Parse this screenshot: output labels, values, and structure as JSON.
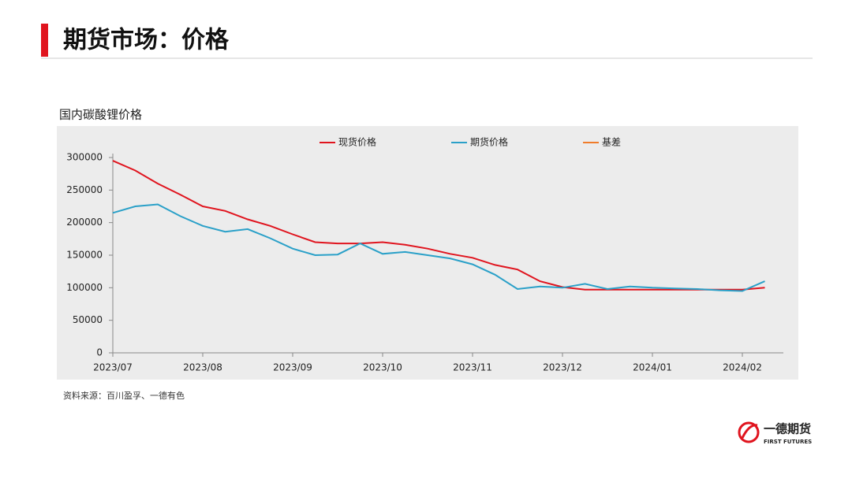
{
  "header": {
    "title": "期货市场：价格"
  },
  "chart_data": {
    "type": "line",
    "title": "国内碳酸锂价格",
    "categories": [
      "2023/07",
      null,
      null,
      null,
      "2023/08",
      null,
      null,
      null,
      "2023/09",
      null,
      null,
      null,
      "2023/10",
      null,
      null,
      null,
      "2023/11",
      null,
      null,
      null,
      "2023/12",
      null,
      null,
      null,
      "2024/01",
      null,
      null,
      null,
      "2024/02",
      null
    ],
    "series": [
      {
        "name": "现货价格",
        "color": "#e0141e",
        "values": [
          295000,
          280000,
          260000,
          243000,
          225000,
          218000,
          205000,
          195000,
          182000,
          170000,
          168000,
          168000,
          170000,
          166000,
          160000,
          152000,
          146000,
          135000,
          128000,
          110000,
          101000,
          97000,
          97000,
          97000,
          97000,
          97000,
          97000,
          97000,
          97000,
          100000
        ]
      },
      {
        "name": "期货价格",
        "color": "#2aa0c8",
        "values": [
          215000,
          225000,
          228000,
          210000,
          195000,
          186000,
          190000,
          176000,
          160000,
          150000,
          151000,
          168000,
          152000,
          155000,
          150000,
          145000,
          136000,
          120000,
          98000,
          102000,
          100000,
          106000,
          98000,
          102000,
          100000,
          99000,
          98000,
          96000,
          95000,
          110000
        ]
      },
      {
        "name": "基差",
        "color": "#f07c2a",
        "values": [
          null,
          null,
          null,
          null,
          null,
          null,
          null,
          null,
          null,
          null,
          null,
          null,
          null,
          null,
          null,
          null,
          null,
          null,
          null,
          null,
          null,
          null,
          null,
          null,
          null,
          null,
          null,
          null,
          null,
          null
        ]
      }
    ],
    "ylim": [
      0,
      300000
    ],
    "yticks": [
      0,
      50000,
      100000,
      150000,
      200000,
      250000,
      300000
    ],
    "grid": false
  },
  "source": "资料来源：百川盈孚、一德有色",
  "logo": {
    "name": "一德期货",
    "subtitle": "FIRST FUTURES"
  }
}
